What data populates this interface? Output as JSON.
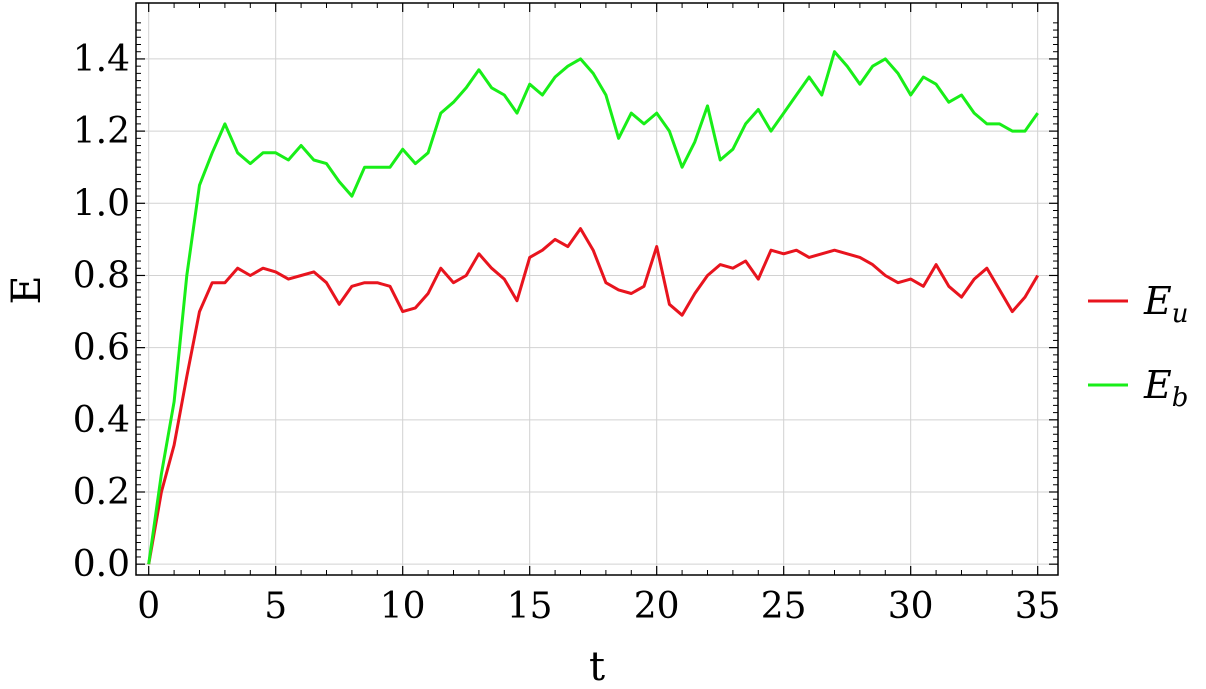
{
  "chart_data": {
    "type": "line",
    "title": "",
    "xlabel": "t",
    "ylabel": "E",
    "xlim": [
      -0.5,
      35.8
    ],
    "ylim": [
      -0.03,
      1.555
    ],
    "xticks": [
      0,
      5,
      10,
      15,
      20,
      25,
      30,
      35
    ],
    "xtick_labels": [
      "0",
      "5",
      "10",
      "15",
      "20",
      "25",
      "30",
      "35"
    ],
    "yticks": [
      0.0,
      0.2,
      0.4,
      0.6,
      0.8,
      1.0,
      1.2,
      1.4
    ],
    "ytick_labels": [
      "0.0",
      "0.2",
      "0.4",
      "0.6",
      "0.8",
      "1.0",
      "1.2",
      "1.4"
    ],
    "grid": true,
    "legend_position": "right",
    "series": [
      {
        "name": "E_u",
        "legend_main": "E",
        "legend_sub": "u",
        "color": "#e8141e",
        "x": [
          0,
          0.5,
          1,
          1.5,
          2,
          2.5,
          3,
          3.5,
          4,
          4.5,
          5,
          5.5,
          6,
          6.5,
          7,
          7.5,
          8,
          8.5,
          9,
          9.5,
          10,
          10.5,
          11,
          11.5,
          12,
          12.5,
          13,
          13.5,
          14,
          14.5,
          15,
          15.5,
          16,
          16.5,
          17,
          17.5,
          18,
          18.5,
          19,
          19.5,
          20,
          20.5,
          21,
          21.5,
          22,
          22.5,
          23,
          23.5,
          24,
          24.5,
          25,
          25.5,
          26,
          26.5,
          27,
          27.5,
          28,
          28.5,
          29,
          29.5,
          30,
          30.5,
          31,
          31.5,
          32,
          32.5,
          33,
          33.5,
          34,
          34.5,
          35
        ],
        "y": [
          0.0,
          0.2,
          0.33,
          0.52,
          0.7,
          0.78,
          0.78,
          0.82,
          0.8,
          0.82,
          0.81,
          0.79,
          0.8,
          0.81,
          0.78,
          0.72,
          0.77,
          0.78,
          0.78,
          0.77,
          0.7,
          0.71,
          0.75,
          0.82,
          0.78,
          0.8,
          0.86,
          0.82,
          0.79,
          0.73,
          0.85,
          0.87,
          0.9,
          0.88,
          0.93,
          0.87,
          0.78,
          0.76,
          0.75,
          0.77,
          0.88,
          0.72,
          0.69,
          0.75,
          0.8,
          0.83,
          0.82,
          0.84,
          0.79,
          0.87,
          0.86,
          0.87,
          0.85,
          0.86,
          0.87,
          0.86,
          0.85,
          0.83,
          0.8,
          0.78,
          0.79,
          0.77,
          0.83,
          0.77,
          0.74,
          0.79,
          0.82,
          0.76,
          0.7,
          0.74,
          0.8
        ]
      },
      {
        "name": "E_b",
        "legend_main": "E",
        "legend_sub": "b",
        "color": "#18ee18",
        "x": [
          0,
          0.5,
          1,
          1.5,
          2,
          2.5,
          3,
          3.5,
          4,
          4.5,
          5,
          5.5,
          6,
          6.5,
          7,
          7.5,
          8,
          8.5,
          9,
          9.5,
          10,
          10.5,
          11,
          11.5,
          12,
          12.5,
          13,
          13.5,
          14,
          14.5,
          15,
          15.5,
          16,
          16.5,
          17,
          17.5,
          18,
          18.5,
          19,
          19.5,
          20,
          20.5,
          21,
          21.5,
          22,
          22.5,
          23,
          23.5,
          24,
          24.5,
          25,
          25.5,
          26,
          26.5,
          27,
          27.5,
          28,
          28.5,
          29,
          29.5,
          30,
          30.5,
          31,
          31.5,
          32,
          32.5,
          33,
          33.5,
          34,
          34.5,
          35
        ],
        "y": [
          0.0,
          0.25,
          0.45,
          0.8,
          1.05,
          1.14,
          1.22,
          1.14,
          1.11,
          1.14,
          1.14,
          1.12,
          1.16,
          1.12,
          1.11,
          1.06,
          1.02,
          1.1,
          1.1,
          1.1,
          1.15,
          1.11,
          1.14,
          1.25,
          1.28,
          1.32,
          1.37,
          1.32,
          1.3,
          1.25,
          1.33,
          1.3,
          1.35,
          1.38,
          1.4,
          1.36,
          1.3,
          1.18,
          1.25,
          1.22,
          1.25,
          1.2,
          1.1,
          1.17,
          1.27,
          1.12,
          1.15,
          1.22,
          1.26,
          1.2,
          1.25,
          1.3,
          1.35,
          1.3,
          1.42,
          1.38,
          1.33,
          1.38,
          1.4,
          1.36,
          1.3,
          1.35,
          1.33,
          1.28,
          1.3,
          1.25,
          1.22,
          1.22,
          1.2,
          1.2,
          1.25
        ]
      }
    ]
  }
}
